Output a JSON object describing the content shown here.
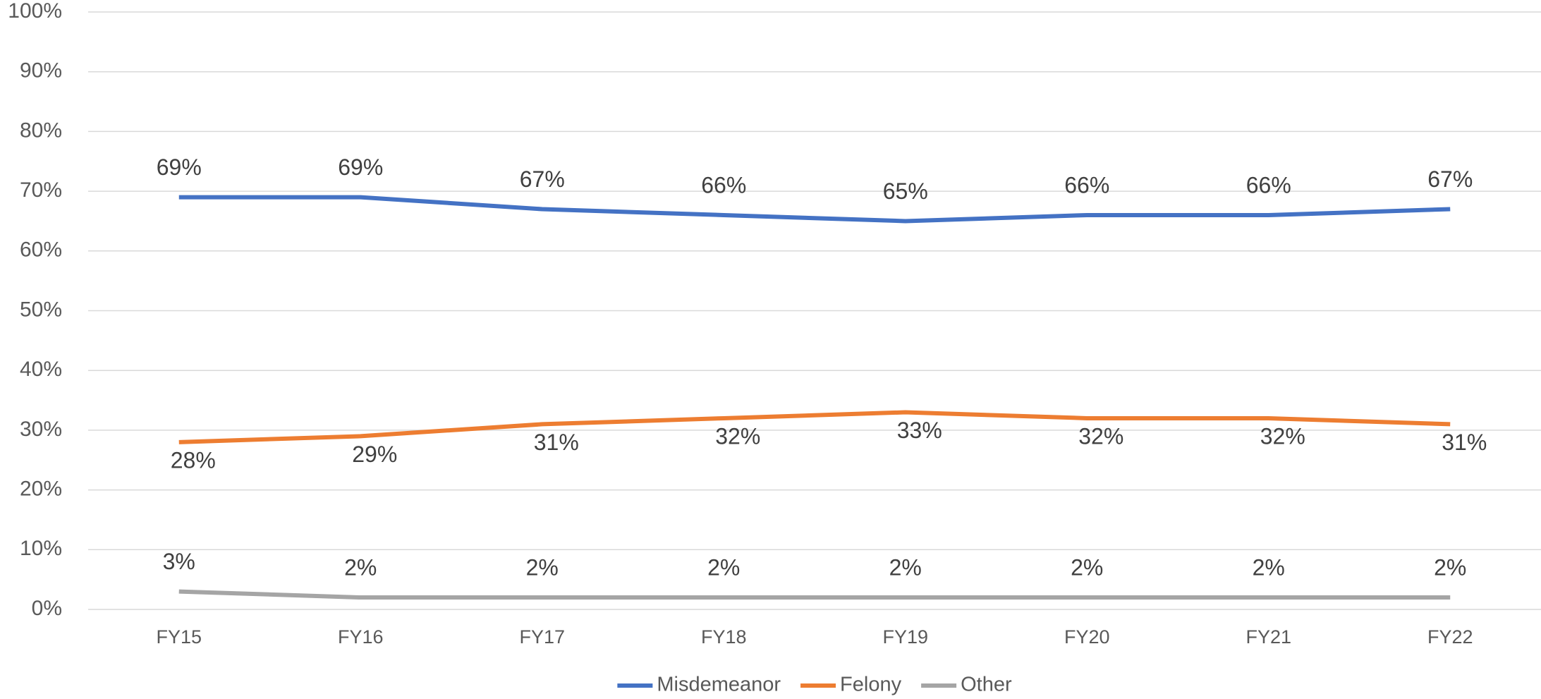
{
  "chart_data": {
    "type": "line",
    "categories": [
      "FY15",
      "FY16",
      "FY17",
      "FY18",
      "FY19",
      "FY20",
      "FY21",
      "FY22"
    ],
    "series": [
      {
        "name": "Misdemeanor",
        "color": "#4472c4",
        "values": [
          69,
          69,
          67,
          66,
          65,
          66,
          66,
          67
        ],
        "value_labels": [
          "69%",
          "69%",
          "67%",
          "66%",
          "65%",
          "66%",
          "66%",
          "67%"
        ]
      },
      {
        "name": "Felony",
        "color": "#ed7d31",
        "values": [
          28,
          29,
          31,
          32,
          33,
          32,
          32,
          31
        ],
        "value_labels": [
          "28%",
          "29%",
          "31%",
          "32%",
          "33%",
          "32%",
          "32%",
          "31%"
        ]
      },
      {
        "name": "Other",
        "color": "#a5a5a5",
        "values": [
          3,
          2,
          2,
          2,
          2,
          2,
          2,
          2
        ],
        "value_labels": [
          "3%",
          "2%",
          "2%",
          "2%",
          "2%",
          "2%",
          "2%",
          "2%"
        ]
      }
    ],
    "ylim": [
      0,
      100
    ],
    "yticks": [
      {
        "value": 0,
        "label": "0%"
      },
      {
        "value": 10,
        "label": "10%"
      },
      {
        "value": 20,
        "label": "20%"
      },
      {
        "value": 30,
        "label": "30%"
      },
      {
        "value": 40,
        "label": "40%"
      },
      {
        "value": 50,
        "label": "50%"
      },
      {
        "value": 60,
        "label": "60%"
      },
      {
        "value": 70,
        "label": "70%"
      },
      {
        "value": 80,
        "label": "80%"
      },
      {
        "value": 90,
        "label": "90%"
      },
      {
        "value": 100,
        "label": "100%"
      }
    ],
    "grid": true,
    "legend": "bottom"
  }
}
